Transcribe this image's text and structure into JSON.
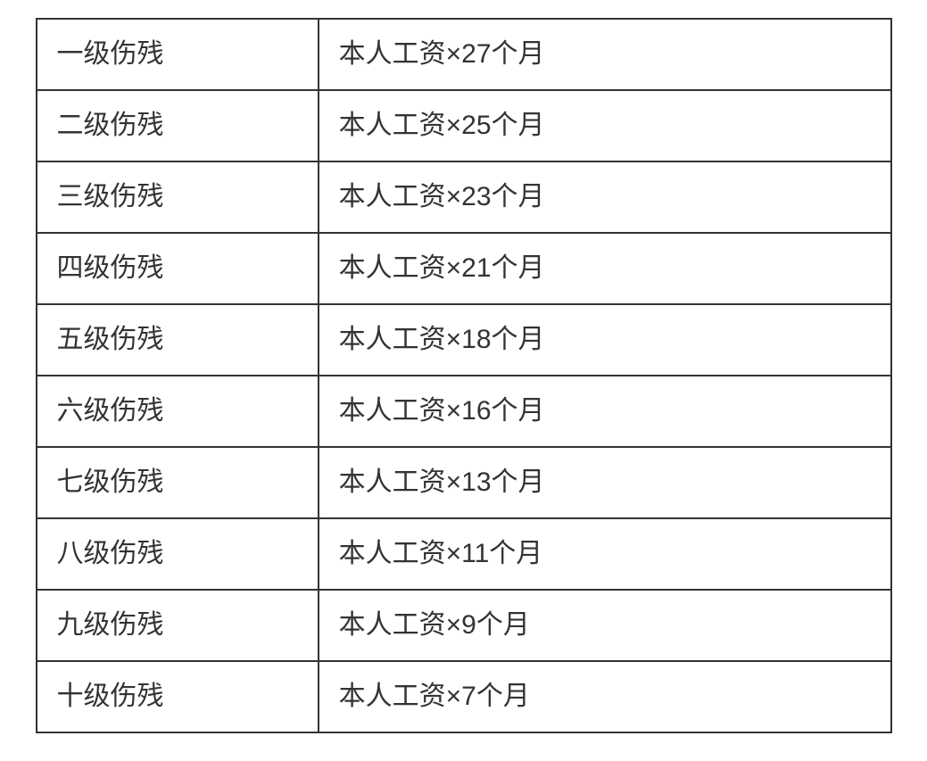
{
  "table": {
    "type": "table",
    "border_color": "#333333",
    "border_width": 2,
    "background_color": "#ffffff",
    "text_color": "#333333",
    "font_size": 30,
    "padding_y": 18,
    "padding_x": 22,
    "columns": [
      {
        "key": "level",
        "width_percent": 33,
        "align": "left"
      },
      {
        "key": "formula",
        "width_percent": 67,
        "align": "left"
      }
    ],
    "rows": [
      {
        "level": "一级伤残",
        "formula": "本人工资×27个月"
      },
      {
        "level": "二级伤残",
        "formula": "本人工资×25个月"
      },
      {
        "level": "三级伤残",
        "formula": "本人工资×23个月"
      },
      {
        "level": "四级伤残",
        "formula": "本人工资×21个月"
      },
      {
        "level": "五级伤残",
        "formula": "本人工资×18个月"
      },
      {
        "level": "六级伤残",
        "formula": "本人工资×16个月"
      },
      {
        "level": "七级伤残",
        "formula": "本人工资×13个月"
      },
      {
        "level": "八级伤残",
        "formula": "本人工资×11个月"
      },
      {
        "level": "九级伤残",
        "formula": "本人工资×9个月"
      },
      {
        "level": "十级伤残",
        "formula": "本人工资×7个月"
      }
    ]
  }
}
